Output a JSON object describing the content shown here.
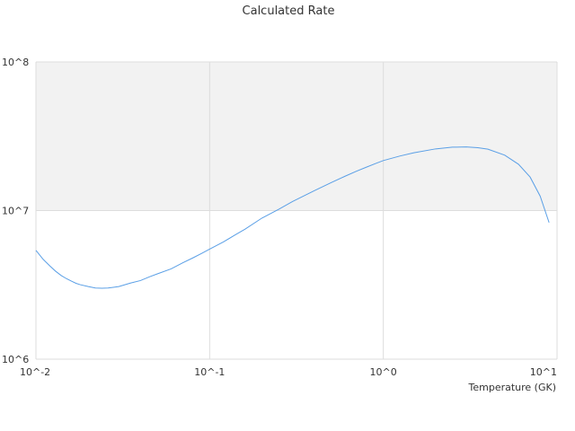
{
  "chart_data": {
    "type": "line",
    "title": "Calculated Rate",
    "xlabel": "Temperature (GK)",
    "ylabel": "",
    "x_scale": "log",
    "y_scale": "log",
    "xlim": [
      0.01,
      10
    ],
    "ylim": [
      1000000,
      100000000
    ],
    "x_ticks": [
      "10^-2",
      "10^-1",
      "10^0",
      "10^1"
    ],
    "y_ticks": [
      "10^6",
      "10^7",
      "10^8"
    ],
    "grid": true,
    "legend": "none",
    "shaded_band": {
      "from": 10000000,
      "to": 100000000,
      "color": "#f2f2f2"
    },
    "series": [
      {
        "color": "#5a9fe6",
        "x": [
          0.01,
          0.011,
          0.012,
          0.013,
          0.014,
          0.015,
          0.016,
          0.017,
          0.018,
          0.02,
          0.022,
          0.024,
          0.026,
          0.03,
          0.035,
          0.04,
          0.045,
          0.05,
          0.06,
          0.07,
          0.08,
          0.09,
          0.1,
          0.12,
          0.14,
          0.16,
          0.2,
          0.25,
          0.3,
          0.4,
          0.5,
          0.6,
          0.7,
          0.8,
          0.9,
          1.0,
          1.25,
          1.5,
          2.0,
          2.5,
          3.0,
          3.5,
          4.0,
          5.0,
          6.0,
          7.0,
          8.0,
          9.0
        ],
        "y": [
          5400000,
          4700000,
          4250000,
          3900000,
          3650000,
          3480000,
          3350000,
          3240000,
          3170000,
          3080000,
          3010000,
          3000000,
          3010000,
          3080000,
          3250000,
          3380000,
          3580000,
          3750000,
          4050000,
          4450000,
          4800000,
          5150000,
          5500000,
          6150000,
          6850000,
          7500000,
          8900000,
          10200000,
          11500000,
          13600000,
          15400000,
          17000000,
          18400000,
          19600000,
          20700000,
          21700000,
          23300000,
          24500000,
          26000000,
          26700000,
          26800000,
          26500000,
          25900000,
          23600000,
          20500000,
          16800000,
          12500000,
          8300000
        ]
      }
    ]
  }
}
